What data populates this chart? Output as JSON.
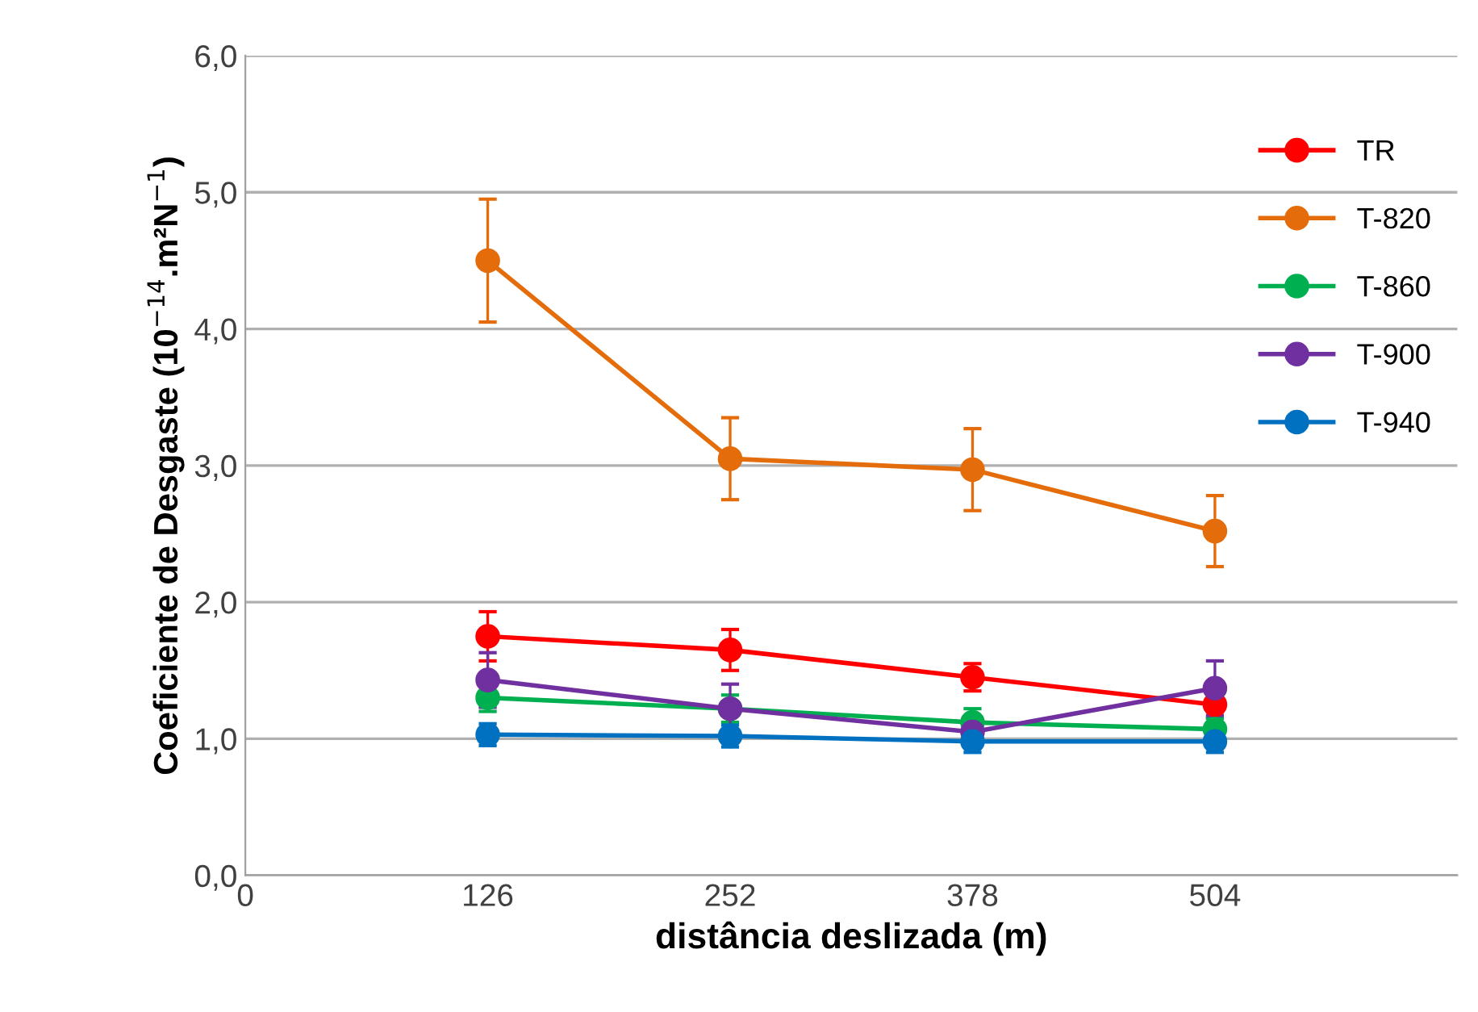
{
  "chart_data": {
    "type": "line",
    "xlabel": "distância deslizada (m)",
    "ylabel": "Coeficiente de Desgaste (10$^{−14}$.m²N$^{−1}$)",
    "x": [
      126,
      252,
      378,
      504
    ],
    "series": [
      {
        "name": "TR",
        "color": "#ff0000",
        "values": [
          1.75,
          1.65,
          1.45,
          1.25
        ],
        "errors": [
          0.18,
          0.15,
          0.1,
          0.1
        ]
      },
      {
        "name": "T-820",
        "color": "#e46c0a",
        "values": [
          4.5,
          3.05,
          2.97,
          2.52
        ],
        "errors": [
          0.45,
          0.3,
          0.3,
          0.26
        ]
      },
      {
        "name": "T-860",
        "color": "#00b050",
        "values": [
          1.3,
          1.22,
          1.12,
          1.07
        ],
        "errors": [
          0.1,
          0.1,
          0.1,
          0.08
        ]
      },
      {
        "name": "T-900",
        "color": "#7030a0",
        "values": [
          1.43,
          1.22,
          1.05,
          1.37
        ],
        "errors": [
          0.2,
          0.18,
          null,
          0.2
        ]
      },
      {
        "name": "T-940",
        "color": "#0070c0",
        "values": [
          1.03,
          1.02,
          0.98,
          0.98
        ],
        "errors": [
          0.08,
          0.08,
          0.08,
          0.08
        ]
      }
    ],
    "xlim": [
      0,
      630
    ],
    "xticks": [
      0,
      126,
      252,
      378,
      504
    ],
    "ylim": [
      0,
      6
    ],
    "yticks": [
      {
        "value": 0,
        "label": "0,0"
      },
      {
        "value": 1,
        "label": "1,0"
      },
      {
        "value": 2,
        "label": "2,0"
      },
      {
        "value": 3,
        "label": "3,0"
      },
      {
        "value": 4,
        "label": "4,0"
      },
      {
        "value": 5,
        "label": "5,0"
      },
      {
        "value": 6,
        "label": "6,0"
      }
    ],
    "grid": "y",
    "legend": "top right",
    "marker": "circle",
    "line_style": "solid"
  }
}
